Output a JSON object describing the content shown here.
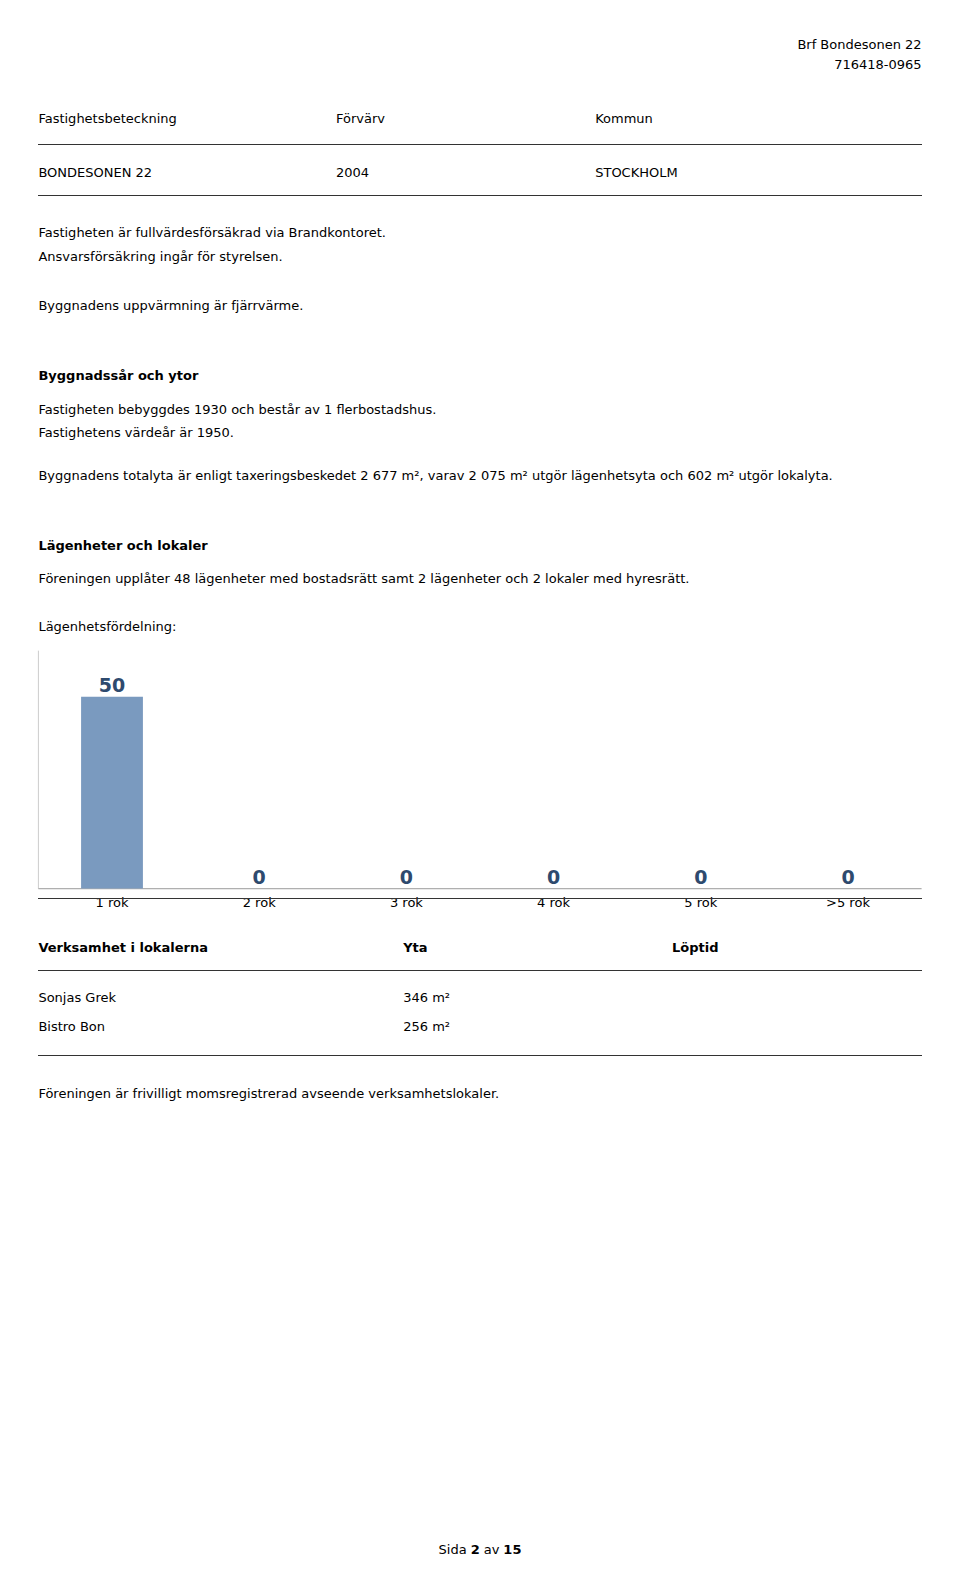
{
  "page": {
    "header_right_line1": "Brf Bondesonen 22",
    "header_right_line2": "716418-0965",
    "table_headers": [
      "Fastighetsbeteckning",
      "Förvärv",
      "Kommun"
    ],
    "table_values": [
      "BONDESONEN 22",
      "2004",
      "STOCKHOLM"
    ],
    "para1_line1": "Fastigheten är fullvärdesförsäkrad via Brandkontoret.",
    "para1_line2": "Ansvarsförsäkring ingår för styrelsen.",
    "para2": "Byggnadens uppvärmning är fjärrvärme.",
    "section1_title": "Byggnadssår och ytor",
    "section1_line1": "Fastigheten bebyggdes 1930 och består av 1 flerbostadshus.",
    "section1_line2": "Fastighetens värdeår är 1950.",
    "section1_para": "Byggnadens totalyta är enligt taxeringsbeskedet 2 677 m², varav 2 075 m² utgör lägenhetsyta och 602 m² utgör lokalyta.",
    "section2_title": "Lägenheter och lokaler",
    "section2_para": "Föreningen upplåter 48 lägenheter med bostadsrätt samt 2 lägenheter och 2 lokaler med hyresrätt.",
    "chart_label": "Lägenhetsfördelning:",
    "table2_headers": [
      "Verksamhet i lokalerna",
      "Yta",
      "Löptid"
    ],
    "table2_rows": [
      [
        "Sonjas Grek",
        "346 m²",
        null
      ],
      [
        "Bistro Bon",
        "256 m²",
        null
      ]
    ],
    "footer_para": "Föreningen är frivilligt momsregistrerad avseende verksamhetslokaler.",
    "page_footer": [
      "Sida",
      "2",
      "av",
      "15"
    ]
  },
  "chart_data": {
    "type": "bar",
    "categories": [
      "1 rok",
      "2 rok",
      "3 rok",
      "4 rok",
      "5 rok",
      ">5 rok"
    ],
    "values": [
      50,
      0,
      0,
      0,
      0,
      0
    ],
    "color": "#7a9abf",
    "ylim": [
      0,
      62
    ],
    "yticks": [],
    "tick_labels": "x",
    "data_labels": true,
    "grid": false
  }
}
